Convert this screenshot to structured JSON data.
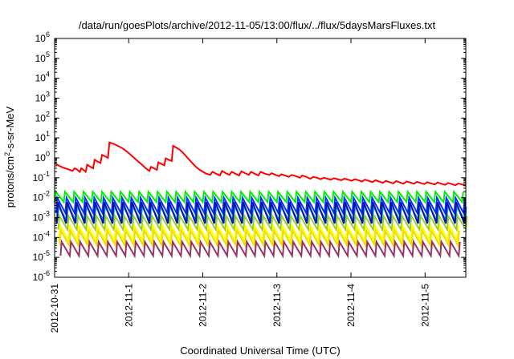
{
  "chart_data": {
    "type": "line",
    "title": "/data/run/goesPlots/archive/2012-11-05/13:00/flux/../flux/5daysMarsFluxes.txt",
    "xlabel": "Coordinated Universal Time (UTC)",
    "ylabel": "protons/cm²-s-sr-MeV",
    "y_scale": "log",
    "ylim_exponents": [
      -6,
      6
    ],
    "y_tick_labels": [
      "10-6",
      "10-5",
      "10-4",
      "10-3",
      "10-2",
      "10-1",
      "100",
      "101",
      "102",
      "103",
      "104",
      "105",
      "106"
    ],
    "x_range_days": [
      "2012-10-31",
      "2012-11-05 13:00"
    ],
    "x_ticks": [
      "2012-10-31",
      "2012-11-1",
      "2012-11-2",
      "2012-11-3",
      "2012-11-4",
      "2012-11-5"
    ],
    "grid": false,
    "legend": "none",
    "series": [
      {
        "color": "#ff0000",
        "kind": "red",
        "points": [
          [
            0.0,
            0.55
          ],
          [
            0.06,
            0.4
          ],
          [
            0.12,
            0.32
          ],
          [
            0.18,
            0.27
          ],
          [
            0.24,
            0.22
          ],
          [
            0.27,
            0.3
          ],
          [
            0.3,
            0.26
          ],
          [
            0.34,
            0.2
          ],
          [
            0.36,
            0.3
          ],
          [
            0.39,
            0.25
          ],
          [
            0.42,
            0.2
          ],
          [
            0.44,
            0.45
          ],
          [
            0.48,
            0.36
          ],
          [
            0.52,
            0.3
          ],
          [
            0.54,
            0.8
          ],
          [
            0.58,
            0.65
          ],
          [
            0.62,
            0.55
          ],
          [
            0.64,
            1.4
          ],
          [
            0.68,
            1.2
          ],
          [
            0.72,
            1.0
          ],
          [
            0.74,
            6.0
          ],
          [
            0.78,
            5.3
          ],
          [
            0.83,
            4.4
          ],
          [
            0.88,
            3.6
          ],
          [
            0.93,
            2.8
          ],
          [
            0.98,
            2.0
          ],
          [
            1.03,
            1.4
          ],
          [
            1.08,
            0.95
          ],
          [
            1.13,
            0.65
          ],
          [
            1.18,
            0.45
          ],
          [
            1.23,
            0.3
          ],
          [
            1.28,
            0.22
          ],
          [
            1.3,
            0.35
          ],
          [
            1.34,
            0.3
          ],
          [
            1.38,
            0.25
          ],
          [
            1.4,
            0.6
          ],
          [
            1.44,
            0.5
          ],
          [
            1.48,
            0.42
          ],
          [
            1.5,
            0.95
          ],
          [
            1.54,
            0.8
          ],
          [
            1.58,
            0.7
          ],
          [
            1.6,
            4.0
          ],
          [
            1.64,
            3.3
          ],
          [
            1.68,
            2.7
          ],
          [
            1.72,
            2.0
          ],
          [
            1.76,
            1.4
          ],
          [
            1.8,
            0.95
          ],
          [
            1.84,
            0.65
          ],
          [
            1.88,
            0.45
          ],
          [
            1.92,
            0.32
          ],
          [
            1.96,
            0.25
          ],
          [
            2.0,
            0.2
          ],
          [
            2.05,
            0.16
          ],
          [
            2.1,
            0.14
          ],
          [
            2.13,
            0.2
          ],
          [
            2.18,
            0.16
          ],
          [
            2.23,
            0.13
          ],
          [
            2.26,
            0.22
          ],
          [
            2.31,
            0.17
          ],
          [
            2.36,
            0.14
          ],
          [
            2.39,
            0.2
          ],
          [
            2.44,
            0.16
          ],
          [
            2.49,
            0.13
          ],
          [
            2.52,
            0.21
          ],
          [
            2.57,
            0.17
          ],
          [
            2.62,
            0.14
          ],
          [
            2.65,
            0.2
          ],
          [
            2.7,
            0.16
          ],
          [
            2.75,
            0.13
          ],
          [
            2.78,
            0.2
          ],
          [
            2.84,
            0.16
          ],
          [
            2.9,
            0.14
          ],
          [
            2.93,
            0.17
          ],
          [
            2.98,
            0.14
          ],
          [
            3.03,
            0.12
          ],
          [
            3.06,
            0.15
          ],
          [
            3.11,
            0.13
          ],
          [
            3.16,
            0.11
          ],
          [
            3.2,
            0.14
          ],
          [
            3.26,
            0.12
          ],
          [
            3.31,
            0.1
          ],
          [
            3.34,
            0.13
          ],
          [
            3.4,
            0.11
          ],
          [
            3.45,
            0.09
          ],
          [
            3.49,
            0.11
          ],
          [
            3.54,
            0.1
          ],
          [
            3.59,
            0.085
          ],
          [
            3.63,
            0.1
          ],
          [
            3.68,
            0.09
          ],
          [
            3.73,
            0.08
          ],
          [
            3.77,
            0.095
          ],
          [
            3.82,
            0.085
          ],
          [
            3.87,
            0.075
          ],
          [
            3.91,
            0.09
          ],
          [
            3.96,
            0.08
          ],
          [
            4.01,
            0.07
          ],
          [
            4.05,
            0.085
          ],
          [
            4.1,
            0.075
          ],
          [
            4.15,
            0.065
          ],
          [
            4.19,
            0.08
          ],
          [
            4.24,
            0.07
          ],
          [
            4.29,
            0.06
          ],
          [
            4.33,
            0.075
          ],
          [
            4.38,
            0.065
          ],
          [
            4.43,
            0.055
          ],
          [
            4.47,
            0.07
          ],
          [
            4.52,
            0.06
          ],
          [
            4.57,
            0.052
          ],
          [
            4.61,
            0.068
          ],
          [
            4.66,
            0.058
          ],
          [
            4.71,
            0.05
          ],
          [
            4.75,
            0.065
          ],
          [
            4.8,
            0.058
          ],
          [
            4.85,
            0.05
          ],
          [
            4.89,
            0.062
          ],
          [
            4.94,
            0.055
          ],
          [
            4.99,
            0.048
          ],
          [
            5.03,
            0.06
          ],
          [
            5.08,
            0.052
          ],
          [
            5.13,
            0.046
          ],
          [
            5.17,
            0.058
          ],
          [
            5.22,
            0.05
          ],
          [
            5.27,
            0.044
          ],
          [
            5.31,
            0.055
          ],
          [
            5.36,
            0.048
          ],
          [
            5.41,
            0.042
          ],
          [
            5.45,
            0.052
          ],
          [
            5.5,
            0.046
          ],
          [
            5.55,
            0.04
          ]
        ]
      },
      {
        "color": "#00ee00",
        "kind": "saw",
        "peak": 0.02,
        "trough": 0.006,
        "period": 0.125,
        "phase": 0.0
      },
      {
        "color": "#0033ff",
        "kind": "saw",
        "peak": 0.01,
        "trough": 0.0017,
        "period": 0.125,
        "phase": 0.02
      },
      {
        "color": "#00bbdd",
        "kind": "saw",
        "peak": 0.0035,
        "trough": 0.0007,
        "period": 0.125,
        "phase": 0.04
      },
      {
        "color": "#1111aa",
        "kind": "saw",
        "peak": 0.006,
        "trough": 0.0005,
        "period": 0.125,
        "phase": 0.03
      },
      {
        "color": "#99cc33",
        "kind": "saw",
        "peak": 0.0012,
        "trough": 0.00025,
        "period": 0.125,
        "phase": 0.05
      },
      {
        "color": "#ffff00",
        "kind": "saw",
        "peak": 0.0004,
        "trough": 7e-05,
        "period": 0.125,
        "phase": 0.06
      },
      {
        "color": "#eedd00",
        "kind": "saw",
        "peak": 0.00022,
        "trough": 4e-05,
        "period": 0.125,
        "phase": 0.07
      },
      {
        "color": "#993366",
        "kind": "saw",
        "peak": 6e-05,
        "trough": 1.2e-05,
        "period": 0.125,
        "phase": 0.08
      }
    ]
  }
}
